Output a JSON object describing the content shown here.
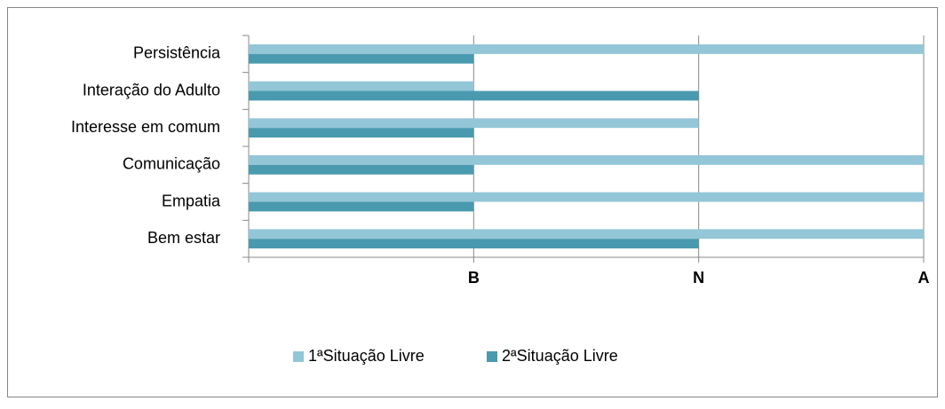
{
  "chart_data": {
    "type": "hbar",
    "categories": [
      "Persistência",
      "Interação do Adulto",
      "Interesse em comum",
      "Comunicação",
      "Empatia",
      "Bem estar"
    ],
    "series": [
      {
        "name": "1ªSituação Livre",
        "color": "#93c6d6",
        "values": [
          3,
          1,
          2,
          3,
          3,
          3
        ]
      },
      {
        "name": "2ªSituação Livre",
        "color": "#4a9aaf",
        "values": [
          1,
          2,
          1,
          1,
          1,
          2
        ]
      }
    ],
    "xlim": [
      0,
      3
    ],
    "xticks": [
      {
        "value": 1,
        "label": "B"
      },
      {
        "value": 2,
        "label": "N"
      },
      {
        "value": 3,
        "label": "A"
      }
    ],
    "grid": true,
    "legend": "bottom"
  }
}
